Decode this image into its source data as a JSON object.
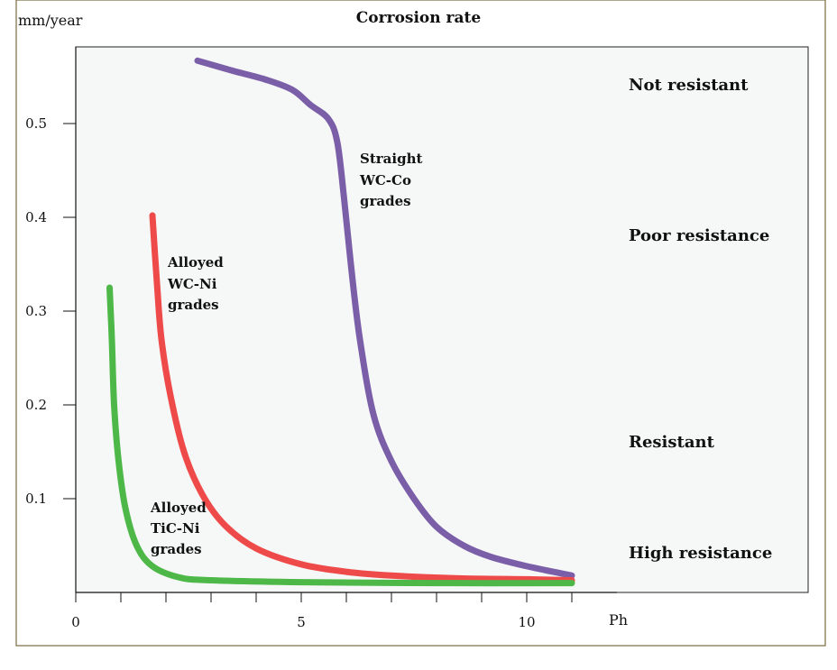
{
  "chart_data": {
    "type": "line",
    "title": "Corrosion rate",
    "ylabel": "mm/year",
    "xlabel": "Ph",
    "xlim": [
      0,
      12
    ],
    "ylim": [
      0,
      0.58
    ],
    "x_ticks": [
      0,
      1,
      2,
      3,
      4,
      5,
      6,
      7,
      8,
      9,
      10,
      11
    ],
    "x_tick_labels": [
      {
        "value": 0,
        "label": "0"
      },
      {
        "value": 5,
        "label": "5"
      },
      {
        "value": 10,
        "label": "10"
      }
    ],
    "y_ticks": [
      {
        "value": 0.1,
        "label": "0.1"
      },
      {
        "value": 0.2,
        "label": "0.2"
      },
      {
        "value": 0.3,
        "label": "0.3"
      },
      {
        "value": 0.4,
        "label": "0.4"
      },
      {
        "value": 0.5,
        "label": "0.5"
      }
    ],
    "zones": [
      "Not resistant",
      "Poor resistance",
      "Resistant",
      "High resistance"
    ],
    "series": [
      {
        "name": "Straight WC-Co grades",
        "label_lines": [
          "Straight",
          "WC-Co",
          "grades"
        ],
        "color": "#7b5ea8",
        "points": [
          [
            2.7,
            0.567
          ],
          [
            3.5,
            0.556
          ],
          [
            4.2,
            0.547
          ],
          [
            4.8,
            0.536
          ],
          [
            5.2,
            0.52
          ],
          [
            5.6,
            0.505
          ],
          [
            5.8,
            0.48
          ],
          [
            5.95,
            0.42
          ],
          [
            6.1,
            0.35
          ],
          [
            6.3,
            0.27
          ],
          [
            6.6,
            0.19
          ],
          [
            7.0,
            0.14
          ],
          [
            7.5,
            0.1
          ],
          [
            8.0,
            0.07
          ],
          [
            8.6,
            0.05
          ],
          [
            9.2,
            0.038
          ],
          [
            10.0,
            0.028
          ],
          [
            11.0,
            0.018
          ]
        ]
      },
      {
        "name": "Alloyed WC-Ni grades",
        "label_lines": [
          "Alloyed",
          "WC-Ni",
          "grades"
        ],
        "color": "#ef4a4a",
        "points": [
          [
            1.7,
            0.402
          ],
          [
            1.8,
            0.33
          ],
          [
            1.9,
            0.27
          ],
          [
            2.1,
            0.21
          ],
          [
            2.4,
            0.15
          ],
          [
            2.8,
            0.105
          ],
          [
            3.3,
            0.072
          ],
          [
            4.0,
            0.047
          ],
          [
            5.0,
            0.03
          ],
          [
            6.0,
            0.022
          ],
          [
            7.0,
            0.018
          ],
          [
            8.5,
            0.015
          ],
          [
            10.0,
            0.014
          ],
          [
            11.0,
            0.013
          ]
        ]
      },
      {
        "name": "Alloyed TiC-Ni grades",
        "label_lines": [
          "Alloyed",
          "TiC-Ni",
          "grades"
        ],
        "color": "#4db848",
        "points": [
          [
            0.75,
            0.325
          ],
          [
            0.8,
            0.27
          ],
          [
            0.85,
            0.2
          ],
          [
            0.95,
            0.14
          ],
          [
            1.1,
            0.09
          ],
          [
            1.35,
            0.05
          ],
          [
            1.7,
            0.028
          ],
          [
            2.3,
            0.016
          ],
          [
            3.0,
            0.013
          ],
          [
            5.0,
            0.011
          ],
          [
            8.0,
            0.01
          ],
          [
            11.0,
            0.01
          ]
        ]
      }
    ]
  }
}
